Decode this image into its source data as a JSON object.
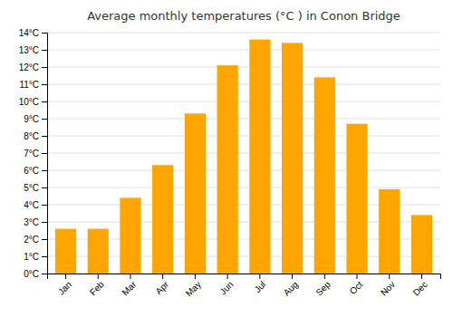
{
  "chart_data": {
    "type": "bar",
    "title": "Average monthly temperatures (°C ) in Conon Bridge",
    "categories": [
      "Jan",
      "Feb",
      "Mar",
      "Apr",
      "May",
      "Jun",
      "Jul",
      "Aug",
      "Sep",
      "Oct",
      "Nov",
      "Dec"
    ],
    "values": [
      2.6,
      2.6,
      4.4,
      6.3,
      9.3,
      12.1,
      13.6,
      13.4,
      11.4,
      8.7,
      4.9,
      3.4
    ],
    "color": "#FFA500",
    "ylim": [
      0,
      14
    ],
    "yticks": [
      {
        "value": 0,
        "label": "0°C"
      },
      {
        "value": 1,
        "label": "1°C"
      },
      {
        "value": 2,
        "label": "2°C"
      },
      {
        "value": 3,
        "label": "3°C"
      },
      {
        "value": 4,
        "label": "4°C"
      },
      {
        "value": 5,
        "label": "5°C"
      },
      {
        "value": 6,
        "label": "6°C"
      },
      {
        "value": 7,
        "label": "7°C"
      },
      {
        "value": 8,
        "label": "8°C"
      },
      {
        "value": 9,
        "label": "9°C"
      },
      {
        "value": 10,
        "label": "10°C"
      },
      {
        "value": 11,
        "label": "11°C"
      },
      {
        "value": 12,
        "label": "12°C"
      },
      {
        "value": 13,
        "label": "13°C"
      },
      {
        "value": 14,
        "label": "14°C"
      }
    ],
    "grid": true
  }
}
